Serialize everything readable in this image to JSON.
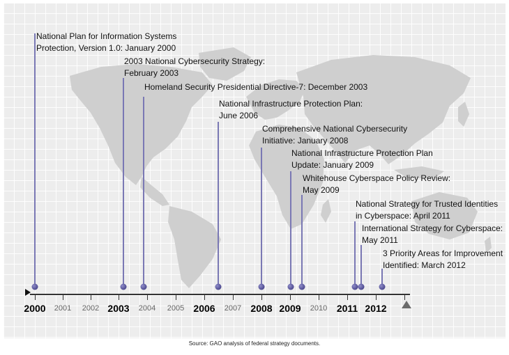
{
  "events": [
    {
      "line1": "National Plan for Information Systems",
      "line2": "Protection, Version 1.0: January 2000"
    },
    {
      "line1": "2003 National Cybersecurity Strategy:",
      "line2": "February 2003"
    },
    {
      "line1": "Homeland Security Presidential Directive-7: December 2003",
      "line2": ""
    },
    {
      "line1": "National Infrastructure Protection Plan:",
      "line2": "June 2006"
    },
    {
      "line1": "Comprehensive National Cybersecurity",
      "line2": "Initiative: January 2008"
    },
    {
      "line1": "National Infrastructure Protection Plan",
      "line2": "Update: January 2009"
    },
    {
      "line1": "Whitehouse Cyberspace Policy Review:",
      "line2": "May 2009"
    },
    {
      "line1": "National Strategy for Trusted Identities",
      "line2": "in Cyberspace: April 2011"
    },
    {
      "line1": "International Strategy for Cyberspace:",
      "line2": "May 2011"
    },
    {
      "line1": "3 Priority Areas for Improvement",
      "line2": "Identified: March 2012"
    }
  ],
  "axis": {
    "years": [
      {
        "label": "2000",
        "major": true
      },
      {
        "label": "2001",
        "major": false
      },
      {
        "label": "2002",
        "major": false
      },
      {
        "label": "2003",
        "major": true
      },
      {
        "label": "2004",
        "major": false
      },
      {
        "label": "2005",
        "major": false
      },
      {
        "label": "2006",
        "major": true
      },
      {
        "label": "2007",
        "major": false
      },
      {
        "label": "2008",
        "major": true
      },
      {
        "label": "2009",
        "major": true
      },
      {
        "label": "2010",
        "major": false
      },
      {
        "label": "2011",
        "major": true
      },
      {
        "label": "2012",
        "major": true
      }
    ]
  },
  "source": "Source: GAO analysis of federal strategy documents."
}
